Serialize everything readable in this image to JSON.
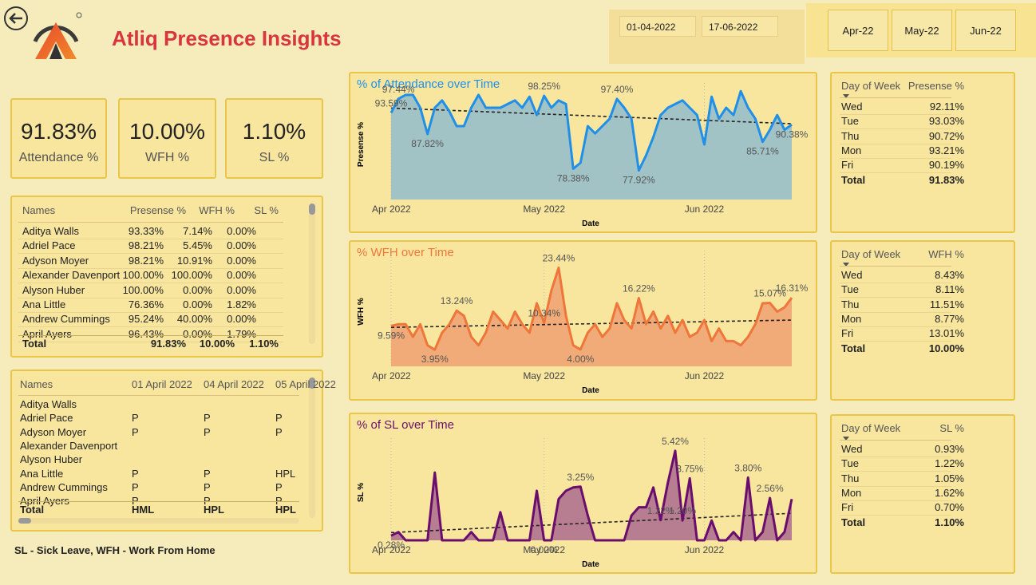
{
  "header": {
    "title": "Atliq Presence Insights",
    "start_date": "01-04-2022",
    "end_date": "17-06-2022",
    "months": [
      "Apr-22",
      "May-22",
      "Jun-22"
    ]
  },
  "kpis": [
    {
      "value": "91.83%",
      "label": "Attendance %"
    },
    {
      "value": "10.00%",
      "label": "WFH %"
    },
    {
      "value": "1.10%",
      "label": "SL %"
    }
  ],
  "employee_table": {
    "columns": [
      "Names",
      "Presense %",
      "WFH %",
      "SL %"
    ],
    "rows": [
      [
        "Aditya Walls",
        "93.33%",
        "7.14%",
        "0.00%"
      ],
      [
        "Adriel Pace",
        "98.21%",
        "5.45%",
        "0.00%"
      ],
      [
        "Adyson Moyer",
        "98.21%",
        "10.91%",
        "0.00%"
      ],
      [
        "Alexander Davenport",
        "100.00%",
        "100.00%",
        "0.00%"
      ],
      [
        "Alyson Huber",
        "100.00%",
        "0.00%",
        "0.00%"
      ],
      [
        "Ana Little",
        "76.36%",
        "0.00%",
        "1.82%"
      ],
      [
        "Andrew Cummings",
        "95.24%",
        "40.00%",
        "0.00%"
      ],
      [
        "April Ayers",
        "96.43%",
        "0.00%",
        "1.79%"
      ]
    ],
    "total": [
      "Total",
      "91.83%",
      "10.00%",
      "1.10%"
    ]
  },
  "daily_table": {
    "columns": [
      "Names",
      "01 April 2022",
      "04 April 2022",
      "05 April 2022"
    ],
    "rows": [
      [
        "Aditya Walls",
        null,
        null,
        null
      ],
      [
        "Adriel Pace",
        "P",
        "P",
        "P"
      ],
      [
        "Adyson Moyer",
        "P",
        "P",
        "P"
      ],
      [
        "Alexander Davenport",
        null,
        null,
        null
      ],
      [
        "Alyson Huber",
        null,
        null,
        null
      ],
      [
        "Ana Little",
        "P",
        "P",
        "HPL"
      ],
      [
        "Andrew Cummings",
        "P",
        "P",
        "P"
      ],
      [
        "April Ayers",
        "P",
        "P",
        "P"
      ]
    ],
    "total": [
      "Total",
      "HML",
      "HPL",
      "HPL"
    ]
  },
  "note": "SL - Sick Leave, WFH - Work From Home",
  "chart_data": [
    {
      "type": "line",
      "title": "% of Attendance over Time",
      "xlabel": "Date",
      "ylabel": "Presense %",
      "color": "#1f8fe8",
      "area_color": "#a2c3c6",
      "trend_line": true,
      "ylim": [
        70,
        100
      ],
      "categories": [
        "Apr 2022",
        null,
        null,
        null,
        null,
        null,
        null,
        null,
        null,
        null,
        null,
        null,
        null,
        null,
        null,
        null,
        null,
        null,
        null,
        null,
        null,
        "May 2022",
        null,
        null,
        null,
        null,
        null,
        null,
        null,
        null,
        null,
        null,
        null,
        null,
        null,
        null,
        null,
        null,
        null,
        null,
        null,
        null,
        null,
        "Jun 2022",
        null,
        null,
        null,
        null,
        null,
        null,
        null,
        null,
        null,
        null,
        null,
        null
      ],
      "values": [
        93.59,
        97.44,
        98.5,
        98.5,
        95,
        87.82,
        95,
        97,
        94,
        90,
        90,
        95,
        98.5,
        95,
        95,
        95,
        96,
        97,
        95,
        98,
        93,
        98.25,
        95,
        97,
        96,
        78.38,
        80,
        90,
        88,
        90,
        92,
        97.4,
        95,
        92,
        77.92,
        82,
        87,
        93,
        95,
        96,
        97,
        95,
        93,
        85,
        98,
        92,
        95,
        93,
        99.5,
        95,
        92,
        85.71,
        89,
        93,
        89,
        90.38
      ],
      "value_labels": [
        "93.59%",
        "97.44%",
        null,
        null,
        null,
        "87.82%",
        null,
        null,
        null,
        null,
        null,
        null,
        null,
        null,
        null,
        null,
        null,
        null,
        null,
        null,
        null,
        "98.25%",
        null,
        null,
        null,
        "78.38%",
        null,
        null,
        null,
        null,
        null,
        "97.40%",
        null,
        null,
        "77.92%",
        null,
        null,
        null,
        null,
        null,
        null,
        null,
        null,
        null,
        null,
        null,
        null,
        null,
        null,
        null,
        null,
        "85.71%",
        null,
        null,
        null,
        "90.38%"
      ]
    },
    {
      "type": "line",
      "title": "% WFH over Time",
      "xlabel": "Date",
      "ylabel": "WFH %",
      "color": "#ee763a",
      "area_color": "#f0ab78",
      "trend_line": true,
      "ylim": [
        0,
        26
      ],
      "categories": [
        "Apr 2022",
        null,
        null,
        null,
        null,
        null,
        null,
        null,
        null,
        null,
        null,
        null,
        null,
        null,
        null,
        null,
        null,
        null,
        null,
        null,
        null,
        "May 2022",
        null,
        null,
        null,
        null,
        null,
        null,
        null,
        null,
        null,
        null,
        null,
        null,
        null,
        null,
        null,
        null,
        null,
        null,
        null,
        null,
        null,
        "Jun 2022",
        null,
        null,
        null,
        null,
        null,
        null,
        null,
        null,
        null,
        null,
        null,
        null
      ],
      "values": [
        9.59,
        10,
        10,
        7,
        10,
        5,
        3.95,
        8,
        10,
        13.24,
        12,
        7,
        5,
        8,
        13,
        11,
        9,
        13,
        10,
        8,
        15,
        10.34,
        18,
        23.44,
        12,
        5,
        4,
        8,
        10,
        7,
        9,
        15,
        11,
        9,
        16.22,
        10,
        13,
        9,
        12,
        8,
        11,
        7,
        8,
        11,
        6,
        9,
        6,
        6,
        5,
        7,
        10,
        15,
        15.07,
        13,
        14,
        16.31
      ],
      "value_labels": [
        "9.59%",
        null,
        null,
        null,
        null,
        null,
        "3.95%",
        null,
        null,
        "13.24%",
        null,
        null,
        null,
        null,
        null,
        null,
        null,
        null,
        null,
        null,
        null,
        "10.34%",
        null,
        "23.44%",
        null,
        null,
        "4.00%",
        null,
        null,
        null,
        null,
        null,
        null,
        null,
        "16.22%",
        null,
        null,
        null,
        null,
        null,
        null,
        null,
        null,
        null,
        null,
        null,
        null,
        null,
        null,
        null,
        null,
        null,
        "15.07%",
        null,
        null,
        "16.31%"
      ]
    },
    {
      "type": "line",
      "title": "% of SL over Time",
      "xlabel": "Date",
      "ylabel": "SL %",
      "color": "#6a0d6d",
      "area_color": "#b67e90",
      "trend_line": true,
      "ylim": [
        0,
        5.8
      ],
      "categories": [
        "Apr 2022",
        null,
        null,
        null,
        null,
        null,
        null,
        null,
        null,
        null,
        null,
        null,
        null,
        null,
        null,
        null,
        null,
        null,
        null,
        null,
        null,
        "May 2022",
        null,
        null,
        null,
        null,
        null,
        null,
        null,
        null,
        null,
        null,
        null,
        null,
        null,
        null,
        null,
        null,
        null,
        null,
        null,
        null,
        null,
        "Jun 2022",
        null,
        null,
        null,
        null,
        null,
        null,
        null,
        null,
        null,
        null,
        null,
        null
      ],
      "values": [
        0.28,
        0.5,
        0,
        0,
        0,
        0,
        4.1,
        0,
        0,
        0,
        0,
        0.5,
        0,
        0,
        0,
        1.7,
        0,
        0,
        0,
        0,
        3,
        0,
        0,
        2.5,
        3,
        3.2,
        3.25,
        1.5,
        0,
        0,
        0,
        0,
        0,
        1.5,
        2,
        2,
        3.2,
        1.22,
        3.5,
        5.42,
        1.2,
        3.75,
        0,
        0,
        1.2,
        0,
        0,
        0.5,
        0,
        3.8,
        0,
        0.5,
        2.56,
        0,
        0.5,
        2.5
      ],
      "value_labels": [
        "0.28%",
        null,
        null,
        null,
        null,
        null,
        null,
        null,
        null,
        null,
        null,
        null,
        null,
        null,
        null,
        null,
        null,
        null,
        null,
        null,
        null,
        "0.00%",
        null,
        null,
        null,
        null,
        "3.25%",
        null,
        null,
        null,
        null,
        null,
        null,
        null,
        null,
        null,
        null,
        "1.22%",
        null,
        "5.42%",
        "1.20%",
        "3.75%",
        null,
        null,
        null,
        null,
        null,
        null,
        null,
        "3.80%",
        null,
        null,
        "2.56%",
        null,
        null,
        null
      ]
    }
  ],
  "weekday_tables": [
    {
      "columns": [
        "Day of Week",
        "Presense %"
      ],
      "rows": [
        [
          "Wed",
          "92.11%"
        ],
        [
          "Tue",
          "93.03%"
        ],
        [
          "Thu",
          "90.72%"
        ],
        [
          "Mon",
          "93.21%"
        ],
        [
          "Fri",
          "90.19%"
        ]
      ],
      "total": [
        "Total",
        "91.83%"
      ]
    },
    {
      "columns": [
        "Day of Week",
        "WFH %"
      ],
      "rows": [
        [
          "Wed",
          "8.43%"
        ],
        [
          "Tue",
          "8.11%"
        ],
        [
          "Thu",
          "11.51%"
        ],
        [
          "Mon",
          "8.77%"
        ],
        [
          "Fri",
          "13.01%"
        ]
      ],
      "total": [
        "Total",
        "10.00%"
      ]
    },
    {
      "columns": [
        "Day of Week",
        "SL %"
      ],
      "rows": [
        [
          "Wed",
          "0.93%"
        ],
        [
          "Tue",
          "1.22%"
        ],
        [
          "Thu",
          "1.05%"
        ],
        [
          "Mon",
          "1.62%"
        ],
        [
          "Fri",
          "0.70%"
        ]
      ],
      "total": [
        "Total",
        "1.10%"
      ]
    }
  ]
}
